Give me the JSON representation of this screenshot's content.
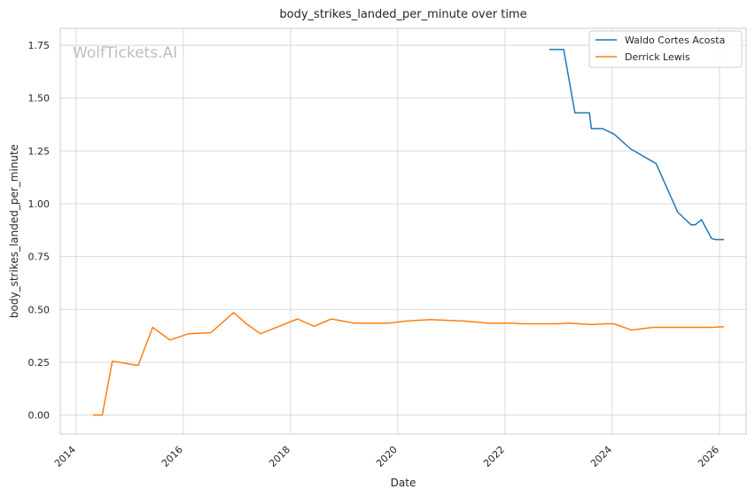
{
  "chart_data": {
    "type": "line",
    "title": "body_strikes_landed_per_minute over time",
    "xlabel": "Date",
    "ylabel": "body_strikes_landed_per_minute",
    "watermark": "WolfTickets.AI",
    "x_ticks": [
      "2014",
      "2016",
      "2018",
      "2020",
      "2022",
      "2024",
      "2026"
    ],
    "y_ticks": [
      "0.00",
      "0.25",
      "0.50",
      "0.75",
      "1.00",
      "1.25",
      "1.50",
      "1.75"
    ],
    "xlim": [
      "2013-09-15",
      "2026-07-01"
    ],
    "ylim": [
      -0.09,
      1.83
    ],
    "grid": true,
    "legend_position": "top-right",
    "series": [
      {
        "name": "Waldo Cortes Acosta",
        "color": "#1f77b4",
        "points": [
          [
            "2022-10-29",
            1.73
          ],
          [
            "2023-02-04",
            1.73
          ],
          [
            "2023-04-22",
            1.43
          ],
          [
            "2023-07-29",
            1.43
          ],
          [
            "2023-08-12",
            1.355
          ],
          [
            "2023-10-28",
            1.355
          ],
          [
            "2024-01-13",
            1.33
          ],
          [
            "2024-05-04",
            1.26
          ],
          [
            "2024-10-26",
            1.19
          ],
          [
            "2025-03-22",
            0.96
          ],
          [
            "2025-06-21",
            0.9
          ],
          [
            "2025-07-19",
            0.9
          ],
          [
            "2025-08-30",
            0.925
          ],
          [
            "2025-11-08",
            0.835
          ],
          [
            "2025-12-06",
            0.83
          ],
          [
            "2026-01-31",
            0.83
          ]
        ]
      },
      {
        "name": "Derrick Lewis",
        "color": "#ff7f0e",
        "points": [
          [
            "2014-04-26",
            0.0
          ],
          [
            "2014-06-28",
            0.0
          ],
          [
            "2014-09-05",
            0.255
          ],
          [
            "2015-02-28",
            0.235
          ],
          [
            "2015-06-06",
            0.415
          ],
          [
            "2015-10-03",
            0.355
          ],
          [
            "2016-02-06",
            0.385
          ],
          [
            "2016-07-07",
            0.39
          ],
          [
            "2016-12-09",
            0.485
          ],
          [
            "2017-03-10",
            0.43
          ],
          [
            "2017-06-10",
            0.385
          ],
          [
            "2018-02-18",
            0.455
          ],
          [
            "2018-06-10",
            0.42
          ],
          [
            "2018-10-06",
            0.455
          ],
          [
            "2019-03-09",
            0.435
          ],
          [
            "2019-11-02",
            0.435
          ],
          [
            "2020-02-29",
            0.445
          ],
          [
            "2020-08-08",
            0.452
          ],
          [
            "2021-03-27",
            0.445
          ],
          [
            "2021-09-04",
            0.435
          ],
          [
            "2022-02-19",
            0.435
          ],
          [
            "2022-04-23",
            0.432
          ],
          [
            "2022-12-17",
            0.432
          ],
          [
            "2023-03-18",
            0.435
          ],
          [
            "2023-08-12",
            0.428
          ],
          [
            "2023-11-18",
            0.432
          ],
          [
            "2024-01-13",
            0.432
          ],
          [
            "2024-05-11",
            0.402
          ],
          [
            "2024-10-05",
            0.415
          ],
          [
            "2025-02-22",
            0.415
          ],
          [
            "2025-11-15",
            0.415
          ],
          [
            "2026-01-31",
            0.418
          ]
        ]
      }
    ]
  }
}
